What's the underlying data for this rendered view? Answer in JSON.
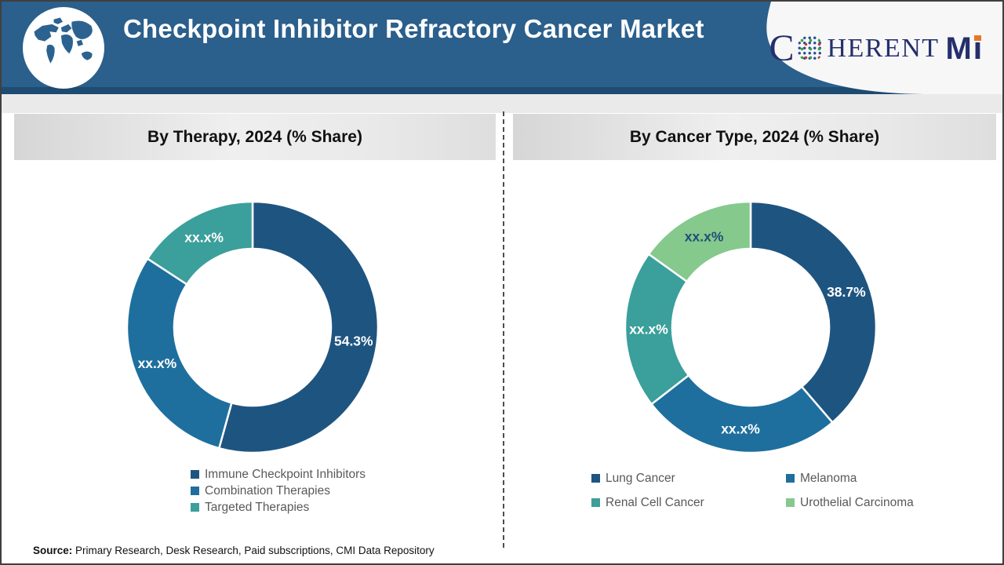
{
  "header": {
    "title": "Checkpoint Inhibitor Refractory Cancer Market"
  },
  "brand": {
    "c": "C",
    "herent": "HERENT",
    "m": "M",
    "i": "I",
    "navy": "#252F6B",
    "orange": "#E87722"
  },
  "chart_data": [
    {
      "type": "pie",
      "subtype": "donut",
      "title": "By Therapy, 2024 (% Share)",
      "start_angle_deg": 0,
      "direction": "clockwise",
      "legend_position": "bottom",
      "legend_columns": 1,
      "values_note": "slices labeled xx.x% are masked in source; values estimated from arc angles",
      "slices": [
        {
          "label": "Immune Checkpoint Inhibitors",
          "value": 54.3,
          "display": "54.3%",
          "color": "#1E5480",
          "label_color": "#FFFFFF"
        },
        {
          "label": "Combination Therapies",
          "value": 29.9,
          "display": "xx.x%",
          "color": "#1E6F9E",
          "label_color": "#FFFFFF"
        },
        {
          "label": "Targeted Therapies",
          "value": 15.8,
          "display": "xx.x%",
          "color": "#3B9F9B",
          "label_color": "#FFFFFF"
        }
      ]
    },
    {
      "type": "pie",
      "subtype": "donut",
      "title": "By Cancer Type, 2024 (% Share)",
      "start_angle_deg": 0,
      "direction": "clockwise",
      "legend_position": "bottom",
      "legend_columns": 2,
      "values_note": "slices labeled xx.x% are masked in source; values estimated from arc angles",
      "slices": [
        {
          "label": "Lung Cancer",
          "value": 38.7,
          "display": "38.7%",
          "color": "#1E5480",
          "label_color": "#FFFFFF"
        },
        {
          "label": "Melanoma",
          "value": 25.8,
          "display": "xx.x%",
          "color": "#1E6F9E",
          "label_color": "#FFFFFF"
        },
        {
          "label": "Renal Cell Cancer",
          "value": 20.4,
          "display": "xx.x%",
          "color": "#3B9F9B",
          "label_color": "#FFFFFF"
        },
        {
          "label": "Urothelial Carcinoma",
          "value": 15.1,
          "display": "xx.x%",
          "color": "#85C98D",
          "label_color": "#1F4E79"
        }
      ]
    }
  ],
  "source": {
    "label": "Source:",
    "text": " Primary Research, Desk Research, Paid subscriptions, CMI Data Repository"
  }
}
